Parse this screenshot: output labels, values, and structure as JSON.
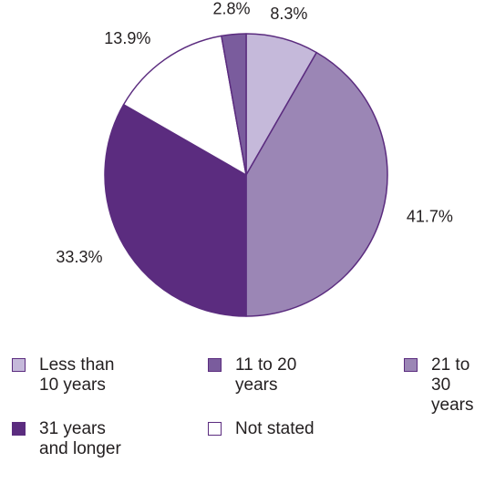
{
  "chart_data": {
    "type": "pie",
    "title": "",
    "start_angle_deg": 0,
    "direction": "clockwise",
    "slices": [
      {
        "label": "Less than\n10 years",
        "value": 8.3,
        "value_label": "8.3%",
        "color": "#c5b9da"
      },
      {
        "label": "21 to 30\nyears",
        "value": 41.7,
        "value_label": "41.7%",
        "color": "#9b86b5"
      },
      {
        "label": "31 years\nand longer",
        "value": 33.3,
        "value_label": "33.3%",
        "color": "#5b2c7f"
      },
      {
        "label": "Not stated",
        "value": 13.9,
        "value_label": "13.9%",
        "color": "#ffffff"
      },
      {
        "label": "11 to 20\nyears",
        "value": 2.8,
        "value_label": "2.8%",
        "color": "#7a5c9d"
      }
    ],
    "legend": {
      "placement": "bottom",
      "items": [
        {
          "label": "Less than\n10 years",
          "color": "#c5b9da"
        },
        {
          "label": "11 to 20\nyears",
          "color": "#7a5c9d"
        },
        {
          "label": "21 to 30\nyears",
          "color": "#9b86b5"
        },
        {
          "label": "31 years\nand longer",
          "color": "#5b2c7f"
        },
        {
          "label": "Not stated",
          "color": "#ffffff"
        }
      ]
    }
  }
}
